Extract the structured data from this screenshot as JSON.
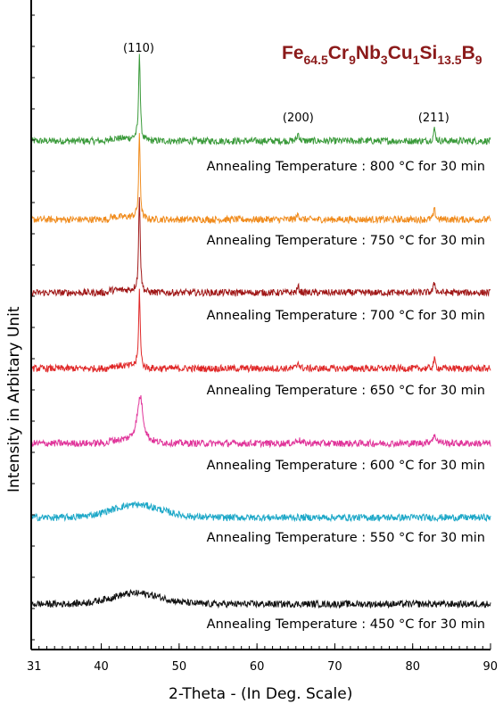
{
  "chart_data": {
    "type": "line",
    "xlabel": "2-Theta - (In Deg. Scale)",
    "ylabel": "Intensity in Arbitary Unit",
    "xlim": [
      31,
      90
    ],
    "x_ticks": [
      "31",
      "40",
      "50",
      "60",
      "70",
      "80",
      "90"
    ],
    "title": {
      "parts": [
        {
          "text": "Fe",
          "sub": false
        },
        {
          "text": "64.5",
          "sub": true
        },
        {
          "text": "Cr",
          "sub": false
        },
        {
          "text": "9",
          "sub": true
        },
        {
          "text": "Nb",
          "sub": false
        },
        {
          "text": "3",
          "sub": true
        },
        {
          "text": "Cu",
          "sub": false
        },
        {
          "text": "1",
          "sub": true
        },
        {
          "text": "Si",
          "sub": false
        },
        {
          "text": "13.5",
          "sub": true
        },
        {
          "text": "B",
          "sub": false
        },
        {
          "text": "9",
          "sub": true
        }
      ]
    },
    "peak_labels": [
      {
        "text": "(110)",
        "x": 44.8
      },
      {
        "text": "(200)",
        "x": 65.3
      },
      {
        "text": "(211)",
        "x": 82.7
      }
    ],
    "series": [
      {
        "name": "Annealing Temperature : 800 °C for 30 min",
        "color": "#3a9a3a",
        "peaks": [
          {
            "x": 44.9,
            "h": 9.2,
            "w": 0.12
          },
          {
            "x": 65.3,
            "h": 0.8,
            "w": 0.15
          },
          {
            "x": 82.8,
            "h": 1.2,
            "w": 0.15
          }
        ],
        "hump": 0.0
      },
      {
        "name": "Annealing Temperature : 750 °C for 30 min",
        "color": "#f08c1e",
        "peaks": [
          {
            "x": 44.9,
            "h": 8.6,
            "w": 0.12
          },
          {
            "x": 65.3,
            "h": 0.6,
            "w": 0.15
          },
          {
            "x": 82.8,
            "h": 1.0,
            "w": 0.15
          }
        ],
        "hump": 0.0
      },
      {
        "name": "Annealing Temperature : 700 °C for 30 min",
        "color": "#a01818",
        "peaks": [
          {
            "x": 44.9,
            "h": 10.0,
            "w": 0.12
          },
          {
            "x": 65.3,
            "h": 0.6,
            "w": 0.15
          },
          {
            "x": 82.8,
            "h": 1.0,
            "w": 0.15
          }
        ],
        "hump": 0.0
      },
      {
        "name": "Annealing Temperature : 650 °C for 30 min",
        "color": "#e02828",
        "peaks": [
          {
            "x": 44.9,
            "h": 8.0,
            "w": 0.12
          },
          {
            "x": 65.3,
            "h": 0.7,
            "w": 0.15
          },
          {
            "x": 82.8,
            "h": 0.9,
            "w": 0.15
          }
        ],
        "hump": 0.0
      },
      {
        "name": "Annealing Temperature : 600 °C for 30 min",
        "color": "#e0349a",
        "peaks": [
          {
            "x": 45.0,
            "h": 4.8,
            "w": 0.45
          },
          {
            "x": 65.3,
            "h": 0.4,
            "w": 0.3
          },
          {
            "x": 82.8,
            "h": 0.7,
            "w": 0.4
          }
        ],
        "hump": 0.0
      },
      {
        "name": "Annealing Temperature : 550 °C for 30 min",
        "color": "#1ea8c8",
        "peaks": [],
        "hump": 1.3
      },
      {
        "name": "Annealing Temperature : 450 °C for 30 min",
        "color": "#111111",
        "peaks": [],
        "hump": 1.1
      }
    ]
  }
}
